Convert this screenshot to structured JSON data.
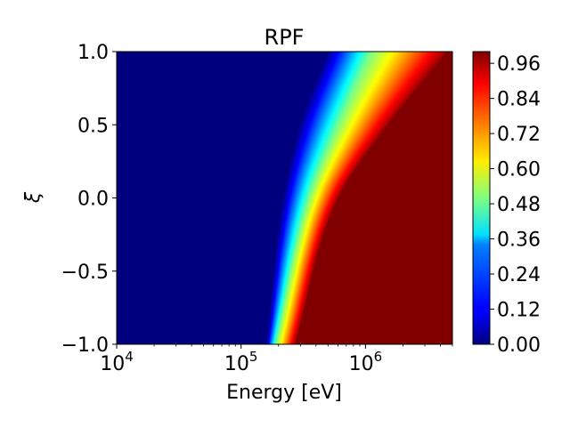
{
  "chart_data": {
    "type": "heatmap",
    "title": "RPF",
    "xlabel": "Energy [eV]",
    "ylabel": "ξ",
    "x_scale": "log",
    "xlim": [
      10000,
      5000000
    ],
    "ylim": [
      -1.0,
      1.0
    ],
    "x_ticks": [
      {
        "value": 10000,
        "base": "10",
        "exp": "4"
      },
      {
        "value": 100000,
        "base": "10",
        "exp": "5"
      },
      {
        "value": 1000000,
        "base": "10",
        "exp": "6"
      }
    ],
    "y_ticks": [
      {
        "value": -1.0,
        "label": "−1.0"
      },
      {
        "value": -0.5,
        "label": "−0.5"
      },
      {
        "value": 0.0,
        "label": "0.0"
      },
      {
        "value": 0.5,
        "label": "0.5"
      },
      {
        "value": 1.0,
        "label": "1.0"
      }
    ],
    "colormap": "jet",
    "color_range": [
      0.0,
      1.0
    ],
    "colorbar_ticks": [
      {
        "value": 0.0,
        "label": "0.00"
      },
      {
        "value": 0.12,
        "label": "0.12"
      },
      {
        "value": 0.24,
        "label": "0.24"
      },
      {
        "value": 0.36,
        "label": "0.36"
      },
      {
        "value": 0.48,
        "label": "0.48"
      },
      {
        "value": 0.6,
        "label": "0.60"
      },
      {
        "value": 0.72,
        "label": "0.72"
      },
      {
        "value": 0.84,
        "label": "0.84"
      },
      {
        "value": 0.96,
        "label": "0.96"
      }
    ],
    "contours": [
      {
        "level": 0.02,
        "points": [
          [
            160000,
            -1.0
          ],
          [
            220000,
            0.0
          ],
          [
            300000,
            0.5
          ],
          [
            500000,
            1.0
          ]
        ]
      },
      {
        "level": 0.5,
        "points": [
          [
            190000,
            -1.0
          ],
          [
            350000,
            0.0
          ],
          [
            600000,
            0.5
          ],
          [
            1100000,
            1.0
          ]
        ]
      },
      {
        "level": 0.98,
        "points": [
          [
            270000,
            -1.0
          ],
          [
            600000,
            0.0
          ],
          [
            1500000,
            0.5
          ],
          [
            4500000,
            1.0
          ]
        ]
      }
    ]
  }
}
